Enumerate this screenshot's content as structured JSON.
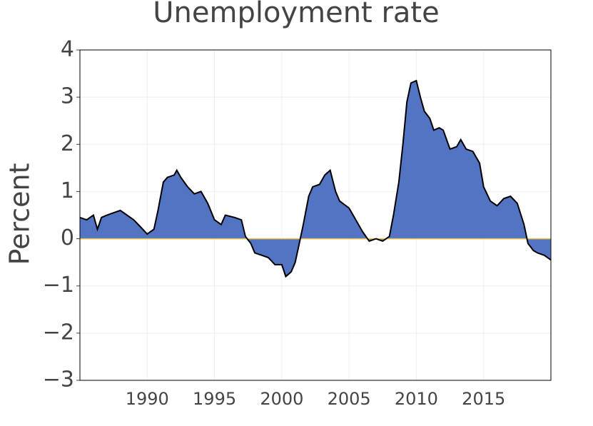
{
  "chart_data": {
    "type": "area",
    "title": "Unemployment rate",
    "y_label": "Percent",
    "x": [
      1985.0,
      1985.5,
      1986.0,
      1986.3,
      1986.6,
      1987.0,
      1987.5,
      1988.0,
      1988.5,
      1989.0,
      1989.5,
      1990.0,
      1990.5,
      1990.8,
      1991.2,
      1991.5,
      1992.0,
      1992.2,
      1992.5,
      1993.0,
      1993.5,
      1994.0,
      1994.5,
      1995.0,
      1995.5,
      1995.8,
      1996.5,
      1997.0,
      1997.3,
      1997.7,
      1998.0,
      1998.5,
      1999.0,
      1999.5,
      2000.0,
      2000.3,
      2000.7,
      2001.0,
      2001.3,
      2001.6,
      2002.0,
      2002.3,
      2002.8,
      2003.2,
      2003.6,
      2004.0,
      2004.3,
      2005.0,
      2005.5,
      2006.0,
      2006.5,
      2007.0,
      2007.5,
      2008.0,
      2008.3,
      2008.7,
      2009.0,
      2009.3,
      2009.6,
      2010.0,
      2010.3,
      2010.6,
      2011.0,
      2011.3,
      2011.7,
      2012.0,
      2012.5,
      2013.0,
      2013.3,
      2013.7,
      2014.2,
      2014.7,
      2015.0,
      2015.5,
      2016.0,
      2016.5,
      2017.0,
      2017.5,
      2018.0,
      2018.3,
      2018.7,
      2019.0,
      2019.5,
      2020.0
    ],
    "values": [
      0.45,
      0.4,
      0.5,
      0.2,
      0.45,
      0.5,
      0.55,
      0.6,
      0.5,
      0.4,
      0.25,
      0.1,
      0.2,
      0.6,
      1.2,
      1.3,
      1.35,
      1.45,
      1.3,
      1.1,
      0.95,
      1.0,
      0.75,
      0.4,
      0.3,
      0.5,
      0.45,
      0.4,
      0.05,
      -0.1,
      -0.3,
      -0.35,
      -0.4,
      -0.55,
      -0.55,
      -0.8,
      -0.7,
      -0.5,
      -0.1,
      0.3,
      0.9,
      1.1,
      1.15,
      1.35,
      1.45,
      1.0,
      0.8,
      0.65,
      0.4,
      0.15,
      -0.05,
      0.0,
      -0.05,
      0.05,
      0.5,
      1.2,
      2.0,
      2.9,
      3.3,
      3.35,
      3.0,
      2.7,
      2.55,
      2.3,
      2.35,
      2.3,
      1.9,
      1.95,
      2.1,
      1.9,
      1.85,
      1.6,
      1.1,
      0.8,
      0.7,
      0.85,
      0.9,
      0.75,
      0.3,
      -0.1,
      -0.25,
      -0.3,
      -0.35,
      -0.45
    ],
    "color": "#4a6cc0",
    "line_color": "#000000",
    "xlim": [
      1985,
      2020
    ],
    "ylim": [
      -3,
      4
    ],
    "xticks": [
      1990,
      1995,
      2000,
      2005,
      2010,
      2015
    ],
    "yticks": [
      {
        "value": -3,
        "label": "−3"
      },
      {
        "value": -2,
        "label": "−2"
      },
      {
        "value": -1,
        "label": "−1"
      },
      0,
      1,
      2,
      3,
      4
    ],
    "grid": true
  }
}
